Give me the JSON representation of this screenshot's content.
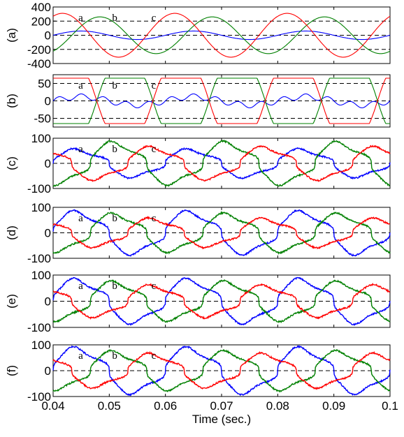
{
  "chart_data": [
    {
      "type": "line",
      "panel_label": "(a)",
      "ylim": [
        -400,
        400
      ],
      "yticks": [
        -400,
        -200,
        0,
        200,
        400
      ],
      "dashed_refs": [
        200,
        0,
        -200
      ],
      "curve_labels": [
        "a",
        "b",
        "c"
      ],
      "series": [
        {
          "color": "#0000ff",
          "kind": "sin",
          "amplitude": 60,
          "phase_deg": 0
        },
        {
          "color": "#008000",
          "kind": "sin",
          "amplitude": 260,
          "phase_deg": 60
        },
        {
          "color": "#ff0000",
          "kind": "sin",
          "amplitude": 310,
          "phase_deg": -60
        }
      ]
    },
    {
      "type": "line",
      "panel_label": "(b)",
      "ylim": [
        -75,
        75
      ],
      "yticks": [
        -50,
        0,
        50
      ],
      "dashed_refs": [
        50,
        0,
        -50
      ],
      "curve_labels": [
        "a",
        "b",
        "c"
      ],
      "series": [
        {
          "color": "#0000ff",
          "kind": "harm",
          "amplitude": 20,
          "phase_deg": 0
        },
        {
          "color": "#008000",
          "kind": "trap",
          "amplitude": 65,
          "phase_deg": 140
        },
        {
          "color": "#ff0000",
          "kind": "trap",
          "amplitude": 65,
          "phase_deg": -40
        }
      ]
    },
    {
      "type": "line",
      "panel_label": "(c)",
      "ylim": [
        -100,
        100
      ],
      "yticks": [
        -100,
        0,
        100
      ],
      "dashed_refs": [
        0
      ],
      "curve_labels": [
        "a",
        "b",
        "c"
      ],
      "series": [
        {
          "color": "#0000ff",
          "kind": "peak",
          "amplitude": 60,
          "phase_deg": 0
        },
        {
          "color": "#008000",
          "kind": "peak",
          "amplitude": 90,
          "phase_deg": 120
        },
        {
          "color": "#ff0000",
          "kind": "peak",
          "amplitude": 70,
          "phase_deg": -120
        }
      ]
    },
    {
      "type": "line",
      "panel_label": "(d)",
      "ylim": [
        -100,
        100
      ],
      "yticks": [
        -100,
        0,
        100
      ],
      "dashed_refs": [
        0
      ],
      "curve_labels": [
        "a",
        "b",
        "c"
      ],
      "series": [
        {
          "color": "#0000ff",
          "kind": "peak",
          "amplitude": 90,
          "phase_deg": 0
        },
        {
          "color": "#008000",
          "kind": "peak",
          "amplitude": 80,
          "phase_deg": 120
        },
        {
          "color": "#ff0000",
          "kind": "peak",
          "amplitude": 60,
          "phase_deg": -120
        }
      ]
    },
    {
      "type": "line",
      "panel_label": "(e)",
      "ylim": [
        -100,
        100
      ],
      "yticks": [
        -100,
        0,
        100
      ],
      "dashed_refs": [
        0
      ],
      "curve_labels": [
        "a",
        "b",
        "c"
      ],
      "series": [
        {
          "color": "#0000ff",
          "kind": "peak",
          "amplitude": 90,
          "phase_deg": 0
        },
        {
          "color": "#008000",
          "kind": "peak",
          "amplitude": 80,
          "phase_deg": 120
        },
        {
          "color": "#ff0000",
          "kind": "peak",
          "amplitude": 65,
          "phase_deg": -120
        }
      ]
    },
    {
      "type": "line",
      "panel_label": "(f)",
      "ylim": [
        -100,
        100
      ],
      "yticks": [
        -100,
        0,
        100
      ],
      "dashed_refs": [
        0
      ],
      "curve_labels": [
        "a",
        "b",
        "c"
      ],
      "series": [
        {
          "color": "#0000ff",
          "kind": "peak",
          "amplitude": 95,
          "phase_deg": 0
        },
        {
          "color": "#008000",
          "kind": "peak",
          "amplitude": 80,
          "phase_deg": 120
        },
        {
          "color": "#ff0000",
          "kind": "peak",
          "amplitude": 70,
          "phase_deg": -120
        }
      ]
    }
  ],
  "shared_x": {
    "xlim": [
      0.04,
      0.1
    ],
    "xticks": [
      "0.04",
      "0.05",
      "0.06",
      "0.07",
      "0.08",
      "0.09",
      "0.1"
    ],
    "xlabel": "Time (sec.)",
    "period": 0.02
  }
}
